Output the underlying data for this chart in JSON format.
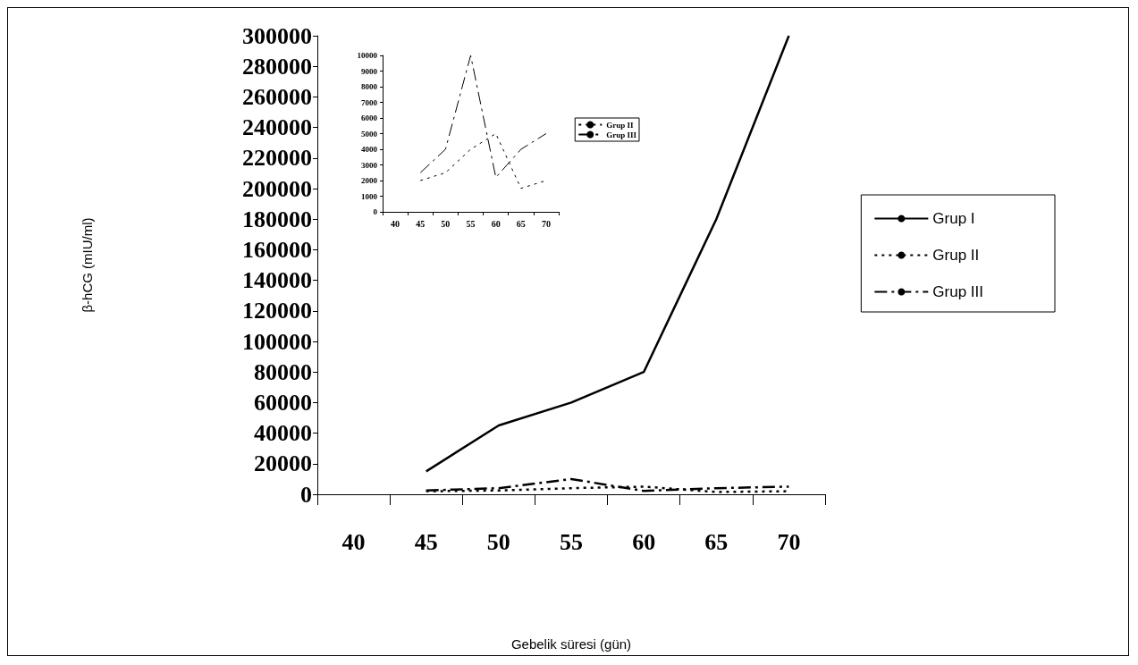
{
  "chart_data": [
    {
      "type": "line",
      "xlabel": "Gebelik süresi (gün)",
      "ylabel": "β-hCG (mIU/ml)",
      "categories": [
        "40",
        "45",
        "50",
        "55",
        "60",
        "65",
        "70"
      ],
      "ylim": [
        0,
        300000
      ],
      "yticks": [
        0,
        20000,
        40000,
        60000,
        80000,
        100000,
        120000,
        140000,
        160000,
        180000,
        200000,
        220000,
        240000,
        260000,
        280000,
        300000
      ],
      "grid": false,
      "legend": "right",
      "marker": "none",
      "series": [
        {
          "name": "Grup I",
          "color": "#000000",
          "line_style": "solid",
          "values": [
            null,
            15000,
            45000,
            60000,
            80000,
            180000,
            300000
          ]
        },
        {
          "name": "Grup II",
          "color": "#000000",
          "line_style": "dotted",
          "values": [
            null,
            2000,
            2500,
            4000,
            5000,
            1500,
            2000
          ]
        },
        {
          "name": "Grup III",
          "color": "#000000",
          "line_style": "dashed",
          "values": [
            null,
            2500,
            4000,
            10000,
            2200,
            4000,
            5000
          ]
        }
      ]
    },
    {
      "type": "line",
      "categories": [
        "40",
        "45",
        "50",
        "55",
        "60",
        "65",
        "70"
      ],
      "ylim": [
        0,
        10000
      ],
      "yticks": [
        0,
        1000,
        2000,
        3000,
        4000,
        5000,
        6000,
        7000,
        8000,
        9000,
        10000
      ],
      "grid": false,
      "legend": "right",
      "marker": "none",
      "series": [
        {
          "name": "Grup II",
          "color": "#000000",
          "line_style": "dotted",
          "values": [
            null,
            2000,
            2500,
            4000,
            5000,
            1500,
            2000
          ]
        },
        {
          "name": "Grup III",
          "color": "#000000",
          "line_style": "dashed",
          "values": [
            null,
            2500,
            4000,
            10000,
            2200,
            4000,
            5000
          ]
        }
      ]
    }
  ]
}
